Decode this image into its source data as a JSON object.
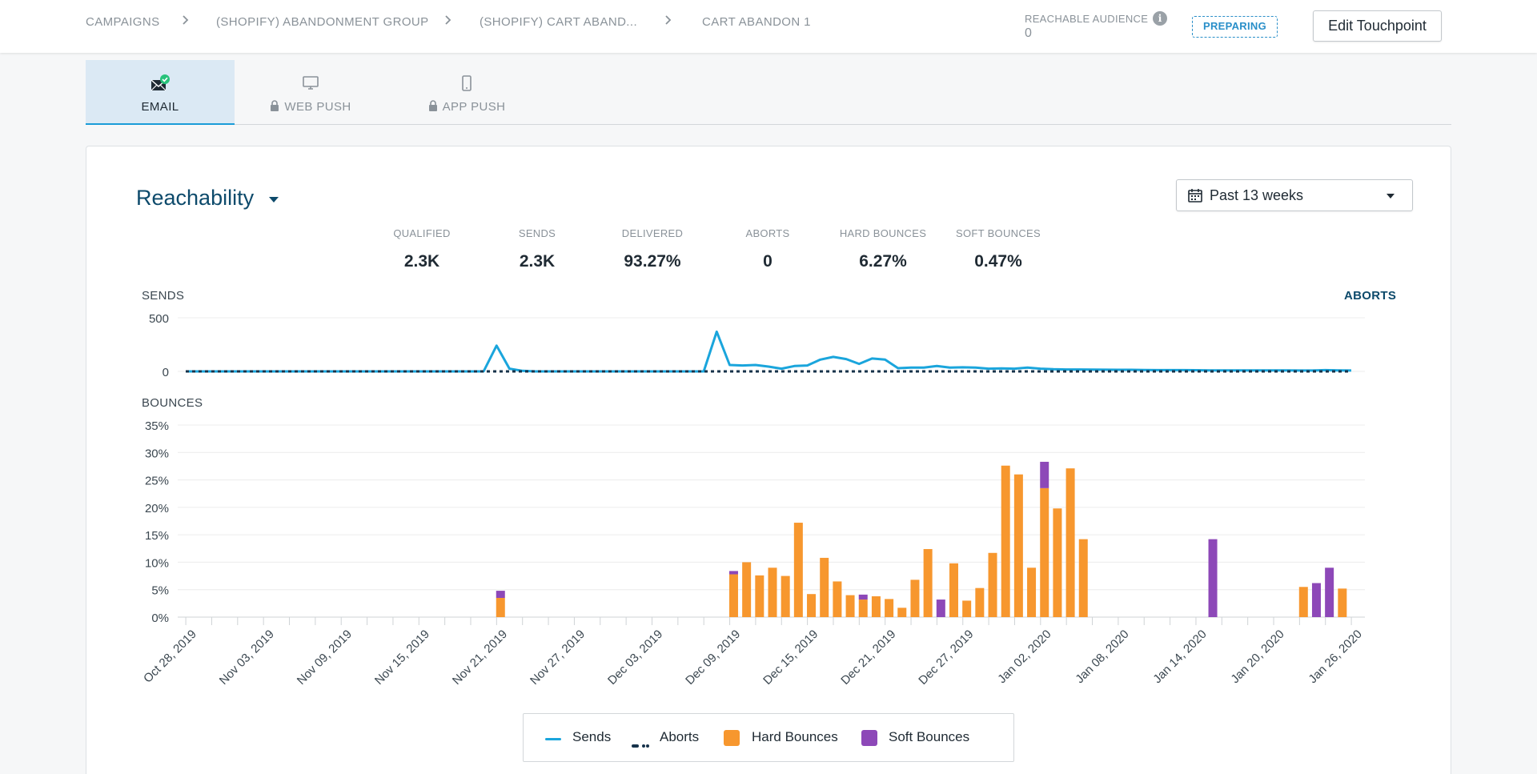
{
  "breadcrumb": {
    "items": [
      "CAMPAIGNS",
      "(SHOPIFY) ABANDONMENT GROUP",
      "(SHOPIFY) CART ABAND...",
      "CART ABANDON 1"
    ]
  },
  "audience": {
    "label": "REACHABLE AUDIENCE",
    "value": "0"
  },
  "status": {
    "label": "PREPARING"
  },
  "edit_button": {
    "label": "Edit Touchpoint"
  },
  "tabs": [
    {
      "label": "EMAIL",
      "icon": "email-icon",
      "active": true,
      "locked": false
    },
    {
      "label": "WEB PUSH",
      "icon": "monitor-icon",
      "active": false,
      "locked": true
    },
    {
      "label": "APP PUSH",
      "icon": "mobile-icon",
      "active": false,
      "locked": true
    }
  ],
  "metric_selector": {
    "label": "Reachability"
  },
  "date_range": {
    "label": "Past 13 weeks"
  },
  "stats": [
    {
      "label": "QUALIFIED",
      "value": "2.3K"
    },
    {
      "label": "SENDS",
      "value": "2.3K"
    },
    {
      "label": "DELIVERED",
      "value": "93.27%"
    },
    {
      "label": "ABORTS",
      "value": "0"
    },
    {
      "label": "HARD BOUNCES",
      "value": "6.27%"
    },
    {
      "label": "SOFT BOUNCES",
      "value": "0.47%"
    }
  ],
  "sections": {
    "sends": "SENDS",
    "bounces": "BOUNCES",
    "aborts": "ABORTS"
  },
  "colors": {
    "sends": "#1aa5dc",
    "aborts": "#16324a",
    "hard": "#f7972e",
    "soft": "#8d48b8",
    "grid": "#ececec"
  },
  "legend": [
    {
      "label": "Sends",
      "type": "line"
    },
    {
      "label": "Aborts",
      "type": "dots"
    },
    {
      "label": "Hard Bounces",
      "type": "box"
    },
    {
      "label": "Soft Bounces",
      "type": "box"
    }
  ],
  "chart_data": [
    {
      "type": "line",
      "title": "SENDS",
      "ylabel": "SENDS",
      "y2label": "ABORTS",
      "ylim": [
        0,
        500
      ],
      "yticks": [
        "500",
        "0"
      ],
      "start_date": "2019-10-28",
      "days": 91,
      "series": [
        {
          "name": "Sends",
          "points": [
            [
              0,
              0
            ],
            [
              23,
              0
            ],
            [
              24,
              240
            ],
            [
              25,
              25
            ],
            [
              26,
              5
            ],
            [
              27,
              0
            ],
            [
              40,
              0
            ],
            [
              41,
              370
            ],
            [
              42,
              60
            ],
            [
              43,
              55
            ],
            [
              44,
              60
            ],
            [
              45,
              45
            ],
            [
              46,
              25
            ],
            [
              47,
              50
            ],
            [
              48,
              55
            ],
            [
              49,
              110
            ],
            [
              50,
              135
            ],
            [
              51,
              115
            ],
            [
              52,
              70
            ],
            [
              53,
              120
            ],
            [
              54,
              110
            ],
            [
              55,
              30
            ],
            [
              56,
              35
            ],
            [
              57,
              35
            ],
            [
              58,
              50
            ],
            [
              59,
              35
            ],
            [
              60,
              38
            ],
            [
              61,
              36
            ],
            [
              62,
              25
            ],
            [
              63,
              28
            ],
            [
              64,
              25
            ],
            [
              65,
              35
            ],
            [
              66,
              25
            ],
            [
              67,
              20
            ],
            [
              68,
              18
            ],
            [
              69,
              18
            ],
            [
              70,
              17
            ],
            [
              71,
              16
            ],
            [
              72,
              15
            ],
            [
              73,
              15
            ],
            [
              74,
              13
            ],
            [
              75,
              12
            ],
            [
              76,
              12
            ],
            [
              77,
              12
            ],
            [
              78,
              11
            ],
            [
              79,
              10
            ],
            [
              80,
              10
            ],
            [
              81,
              10
            ],
            [
              82,
              10
            ],
            [
              83,
              10
            ],
            [
              84,
              9
            ],
            [
              85,
              9
            ],
            [
              86,
              8
            ],
            [
              87,
              8
            ],
            [
              88,
              12
            ],
            [
              89,
              10
            ],
            [
              90,
              8
            ]
          ]
        },
        {
          "name": "Aborts",
          "points": [
            [
              0,
              0
            ],
            [
              90,
              0
            ]
          ]
        }
      ]
    },
    {
      "type": "bar",
      "stacked": true,
      "title": "BOUNCES",
      "ylabel": "BOUNCES",
      "ylim": [
        0,
        35
      ],
      "yticks": [
        "35%",
        "30%",
        "25%",
        "20%",
        "15%",
        "10%",
        "5%",
        "0%"
      ],
      "xticks": [
        "Oct 28, 2019",
        "Nov 03, 2019",
        "Nov 09, 2019",
        "Nov 15, 2019",
        "Nov 21, 2019",
        "Nov 27, 2019",
        "Dec 03, 2019",
        "Dec 09, 2019",
        "Dec 15, 2019",
        "Dec 21, 2019",
        "Dec 27, 2019",
        "Jan 02, 2020",
        "Jan 08, 2020",
        "Jan 14, 2020",
        "Jan 20, 2020",
        "Jan 26, 2020"
      ],
      "series": [
        {
          "name": "Hard Bounces",
          "points": [
            [
              24,
              3.5
            ],
            [
              42,
              7.8
            ],
            [
              43,
              10
            ],
            [
              44,
              7.6
            ],
            [
              45,
              9
            ],
            [
              46,
              7.5
            ],
            [
              47,
              17.2
            ],
            [
              48,
              4.2
            ],
            [
              49,
              10.8
            ],
            [
              50,
              6.5
            ],
            [
              51,
              4
            ],
            [
              52,
              3.2
            ],
            [
              53,
              3.8
            ],
            [
              54,
              3.3
            ],
            [
              55,
              1.7
            ],
            [
              56,
              6.8
            ],
            [
              57,
              12.4
            ],
            [
              58,
              0
            ],
            [
              59,
              9.8
            ],
            [
              60,
              3
            ],
            [
              61,
              5.3
            ],
            [
              62,
              11.7
            ],
            [
              63,
              27.6
            ],
            [
              64,
              26
            ],
            [
              65,
              9
            ],
            [
              66,
              23.5
            ],
            [
              67,
              19.8
            ],
            [
              68,
              27.1
            ],
            [
              69,
              14.2
            ],
            [
              86,
              5.5
            ],
            [
              89,
              5.2
            ]
          ]
        },
        {
          "name": "Soft Bounces",
          "points": [
            [
              24,
              1.3
            ],
            [
              42,
              0.6
            ],
            [
              52,
              0.9
            ],
            [
              58,
              3.2
            ],
            [
              66,
              4.8
            ],
            [
              79,
              14.2
            ],
            [
              87,
              6.2
            ],
            [
              88,
              9
            ]
          ]
        }
      ]
    }
  ]
}
